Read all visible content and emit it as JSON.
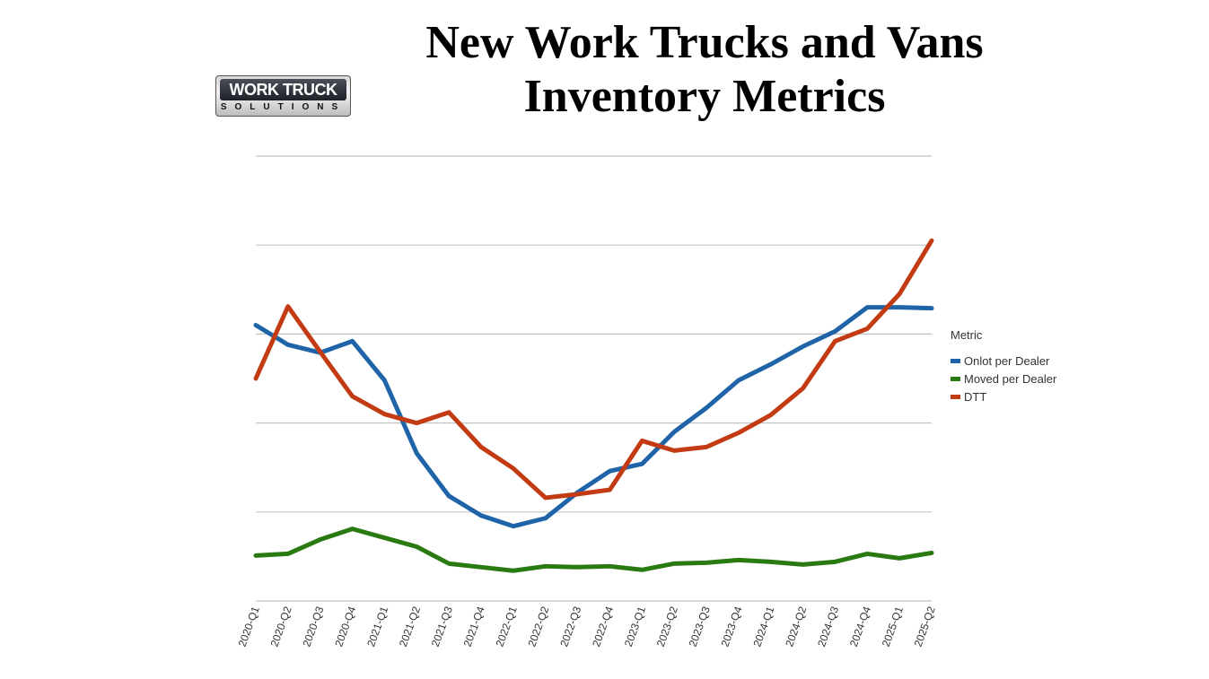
{
  "chart_data": {
    "type": "line",
    "title": "New Work Trucks and Vans Inventory Metrics",
    "title_lines": [
      "New Work Trucks and Vans",
      "Inventory Metrics"
    ],
    "logo": {
      "line1": "WORK TRUCK",
      "line2": "SOLUTIONS"
    },
    "xlabel": "",
    "ylabel": "",
    "y_tick_labels_shown": false,
    "ylim": [
      0,
      5
    ],
    "grid": true,
    "legend": {
      "title": "Metric",
      "placement": "right"
    },
    "categories": [
      "2020-Q1",
      "2020-Q2",
      "2020-Q3",
      "2020-Q4",
      "2021-Q1",
      "2021-Q2",
      "2021-Q3",
      "2021-Q4",
      "2022-Q1",
      "2022-Q2",
      "2022-Q3",
      "2022-Q4",
      "2023-Q1",
      "2023-Q2",
      "2023-Q3",
      "2023-Q4",
      "2024-Q1",
      "2024-Q2",
      "2024-Q3",
      "2024-Q4",
      "2025-Q1",
      "2025-Q2"
    ],
    "series": [
      {
        "name": "Onlot per Dealer",
        "color": "#1f64a8",
        "values": [
          3.1,
          2.88,
          2.79,
          2.92,
          2.48,
          1.66,
          1.18,
          0.96,
          0.84,
          0.93,
          1.22,
          1.46,
          1.54,
          1.9,
          2.17,
          2.48,
          2.66,
          2.86,
          3.03,
          3.3,
          3.3,
          3.29
        ]
      },
      {
        "name": "Moved per Dealer",
        "color": "#2a7a12",
        "values": [
          0.51,
          0.53,
          0.69,
          0.81,
          0.71,
          0.61,
          0.42,
          0.38,
          0.34,
          0.39,
          0.38,
          0.39,
          0.35,
          0.42,
          0.43,
          0.46,
          0.44,
          0.41,
          0.44,
          0.53,
          0.48,
          0.54
        ]
      },
      {
        "name": "DTT",
        "color": "#c23b12",
        "values": [
          2.5,
          3.31,
          2.8,
          2.3,
          2.1,
          2.0,
          2.12,
          1.73,
          1.49,
          1.16,
          1.2,
          1.25,
          1.8,
          1.69,
          1.73,
          1.89,
          2.09,
          2.39,
          2.92,
          3.06,
          3.45,
          4.05
        ]
      }
    ]
  }
}
